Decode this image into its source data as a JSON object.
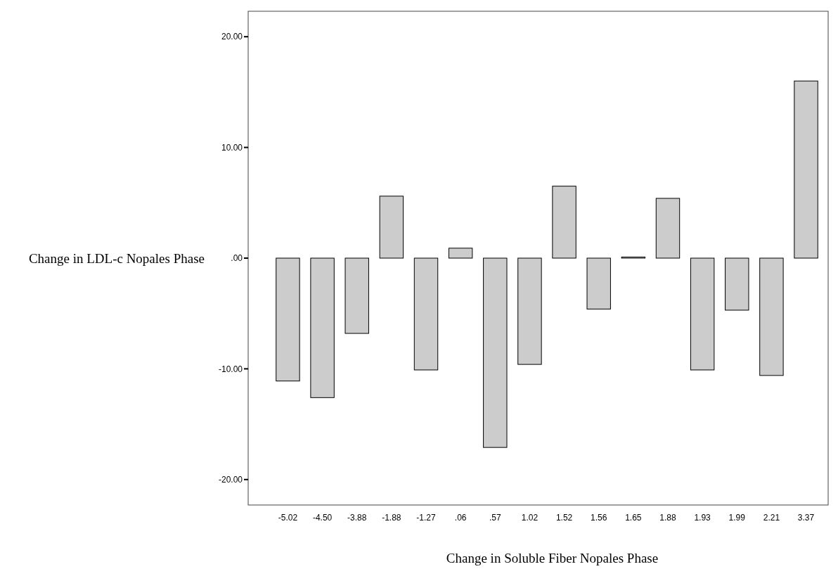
{
  "chart_data": {
    "type": "bar",
    "xlabel": "Change in Soluble Fiber Nopales Phase",
    "ylabel": "Change in LDL-c Nopales Phase",
    "categories": [
      "-5.02",
      "-4.50",
      "-3.88",
      "-1.88",
      "-1.27",
      ".06",
      ".57",
      "1.02",
      "1.52",
      "1.56",
      "1.65",
      "1.88",
      "1.93",
      "1.99",
      "2.21",
      "3.37"
    ],
    "values": [
      -11.1,
      -12.6,
      -6.8,
      5.6,
      -10.1,
      0.9,
      -17.1,
      -9.6,
      6.5,
      -4.6,
      0.1,
      5.4,
      -10.1,
      -4.7,
      -10.6,
      16.0
    ],
    "color": "#cccccc",
    "ylim": [
      -22.3,
      22.3
    ],
    "yticks": [
      {
        "value": -20,
        "label": "-20.00"
      },
      {
        "value": -10,
        "label": "-10.00"
      },
      {
        "value": 0,
        "label": ".00"
      },
      {
        "value": 10,
        "label": "10.00"
      },
      {
        "value": 20,
        "label": "20.00"
      }
    ],
    "grid": false
  }
}
